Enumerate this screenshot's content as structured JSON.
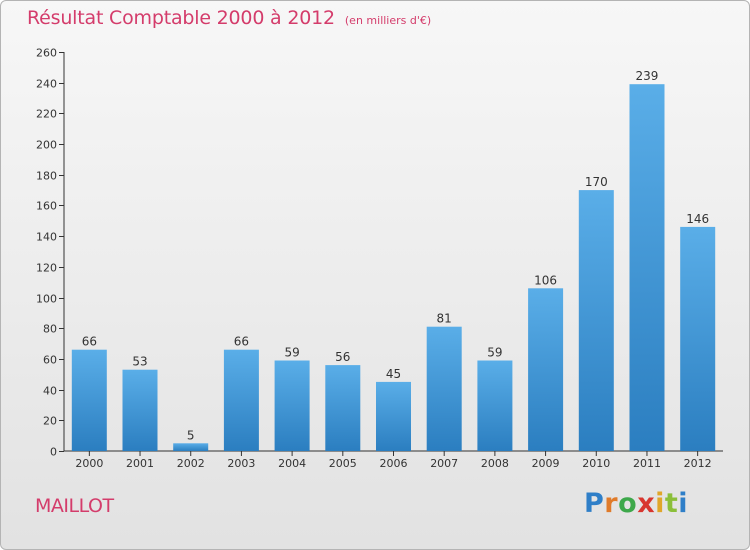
{
  "header": {
    "title": "Résultat Comptable 2000 à 2012",
    "subtitle": "(en milliers d'€)"
  },
  "footer": {
    "commune": "MAILLOT",
    "logo_letters": [
      "P",
      "r",
      "o",
      "x",
      "i",
      "t",
      "i"
    ]
  },
  "colors": {
    "accent": "#d43c6b",
    "bar_top": "#5aaee8",
    "bar_bottom": "#2b7ec0",
    "background": "#ececec"
  },
  "chart_data": {
    "type": "bar",
    "title": "Résultat Comptable 2000 à 2012",
    "subtitle": "(en milliers d'€)",
    "categories": [
      "2000",
      "2001",
      "2002",
      "2003",
      "2004",
      "2005",
      "2006",
      "2007",
      "2008",
      "2009",
      "2010",
      "2011",
      "2012"
    ],
    "values": [
      66,
      53,
      5,
      66,
      59,
      56,
      45,
      81,
      59,
      106,
      170,
      239,
      146
    ],
    "ylim": [
      0,
      260
    ],
    "yticks": [
      0,
      20,
      40,
      60,
      80,
      100,
      120,
      140,
      160,
      180,
      200,
      220,
      240,
      260
    ],
    "grid": false,
    "data_labels": true
  }
}
